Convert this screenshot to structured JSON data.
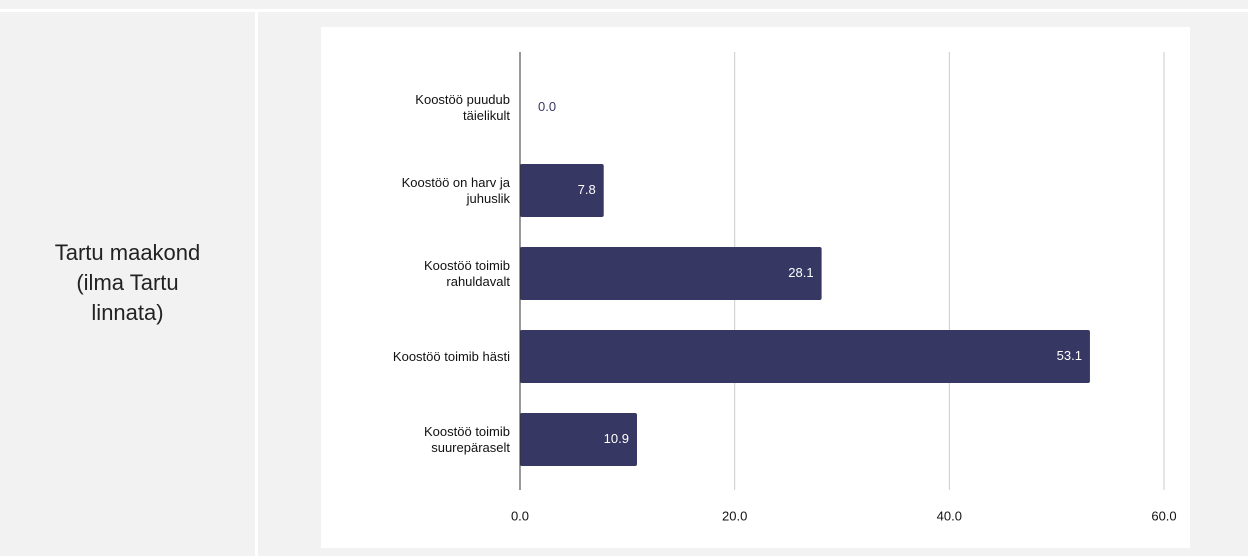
{
  "row_label": "Tartu maakond\n(ilma Tartu\nlinnata)",
  "chart_data": {
    "type": "hbar",
    "categories": [
      "Koostöö puudub\ntäielikult",
      "Koostöö on harv ja\njuhuslik",
      "Koostöö toimib\nrahuldavalt",
      "Koostöö toimib hästi",
      "Koostöö toimib\nsuurepäraselt"
    ],
    "values": [
      0,
      7.8,
      28.1,
      53.1,
      10.9
    ],
    "value_labels": [
      "0.0",
      "7.8",
      "28.1",
      "53.1",
      "10.9"
    ],
    "color": "#363763",
    "xlim": [
      0,
      60
    ],
    "xticks": [
      {
        "value": 0,
        "label": "0.0"
      },
      {
        "value": 20,
        "label": "20.0"
      },
      {
        "value": 40,
        "label": "40.0"
      },
      {
        "value": 60,
        "label": "60.0"
      }
    ],
    "grid": true
  }
}
